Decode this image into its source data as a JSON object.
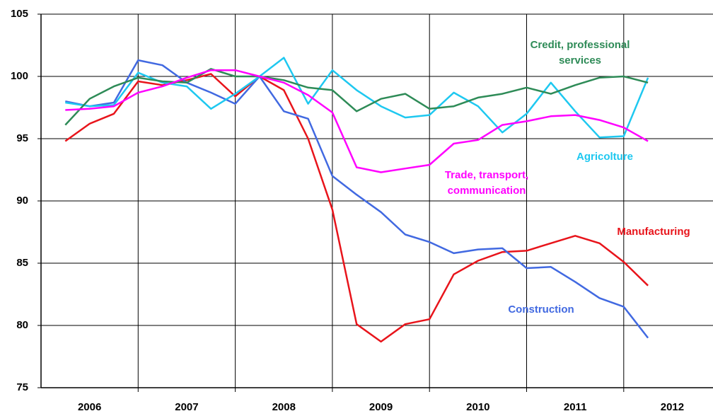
{
  "chart_data": {
    "type": "line",
    "categories": [
      "2006",
      "2007",
      "2008",
      "2009",
      "2010",
      "2011",
      "2012"
    ],
    "x": [
      2006.25,
      2006.5,
      2006.75,
      2007,
      2007.25,
      2007.5,
      2007.75,
      2008,
      2008.25,
      2008.5,
      2008.75,
      2009,
      2009.25,
      2009.5,
      2009.75,
      2010,
      2010.25,
      2010.5,
      2010.75,
      2011,
      2011.25,
      2011.5,
      2011.75,
      2012,
      2012.25
    ],
    "xlim": [
      2006,
      2013
    ],
    "xticks": [
      2007,
      2008,
      2009,
      2010,
      2011,
      2012
    ],
    "ylim": [
      75,
      105
    ],
    "yticks": [
      75,
      80,
      85,
      90,
      95,
      100,
      105
    ],
    "grid": true,
    "series": [
      {
        "name": "Manufacturing",
        "color": "#e8141b",
        "values": [
          94.8,
          96.2,
          97.0,
          99.6,
          99.3,
          99.7,
          100.2,
          98.4,
          100.0,
          98.9,
          95.0,
          89.3,
          80.1,
          78.7,
          80.1,
          80.5,
          84.1,
          85.2,
          85.9,
          86.0,
          86.6,
          87.2,
          86.6,
          85.1,
          83.2
        ]
      },
      {
        "name": "Construction",
        "color": "#4169e1",
        "values": [
          98.0,
          97.6,
          97.9,
          101.3,
          100.9,
          99.5,
          98.7,
          97.8,
          100.0,
          97.2,
          96.6,
          92.0,
          90.5,
          89.1,
          87.3,
          86.7,
          85.8,
          86.1,
          86.2,
          84.6,
          84.7,
          83.5,
          82.2,
          81.5,
          79.0
        ]
      },
      {
        "name": "Agricolture",
        "color": "#1ec8f0",
        "values": [
          97.9,
          97.6,
          97.7,
          100.3,
          99.5,
          99.2,
          97.4,
          98.6,
          100.0,
          101.5,
          97.8,
          100.5,
          98.9,
          97.6,
          96.7,
          96.9,
          98.7,
          97.6,
          95.5,
          97.0,
          99.5,
          97.2,
          95.1,
          95.2,
          99.9
        ]
      },
      {
        "name": "Credit, professional services",
        "color": "#2e8b57",
        "values": [
          96.1,
          98.2,
          99.2,
          99.9,
          99.6,
          99.5,
          100.6,
          100.0,
          100.0,
          99.7,
          99.1,
          98.9,
          97.2,
          98.2,
          98.6,
          97.4,
          97.6,
          98.3,
          98.6,
          99.1,
          98.6,
          99.3,
          99.9,
          100.0,
          99.5
        ]
      },
      {
        "name": "Trade, transport, communication",
        "color": "#ff00ff",
        "values": [
          97.3,
          97.4,
          97.6,
          98.7,
          99.2,
          99.9,
          100.5,
          100.5,
          100.0,
          99.5,
          98.5,
          97.1,
          92.7,
          92.3,
          92.6,
          92.9,
          94.6,
          94.9,
          96.1,
          96.4,
          96.8,
          96.9,
          96.5,
          95.9,
          94.8
        ]
      }
    ]
  }
}
